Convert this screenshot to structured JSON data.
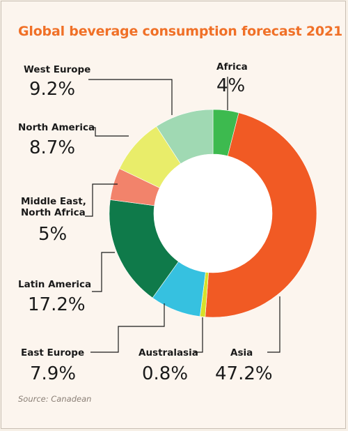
{
  "chart_data": {
    "type": "pie",
    "title": "Global beverage consumption forecast 2021",
    "donut": true,
    "slices": [
      {
        "name": "Africa",
        "value": 4,
        "value_label": "4%",
        "color": "#3dba4f"
      },
      {
        "name": "Asia",
        "value": 47.2,
        "value_label": "47.2%",
        "color": "#f15a24"
      },
      {
        "name": "Australasia",
        "value": 0.8,
        "value_label": "0.8%",
        "color": "#d7e12a"
      },
      {
        "name": "East Europe",
        "value": 7.9,
        "value_label": "7.9%",
        "color": "#36c1e0"
      },
      {
        "name": "Latin America",
        "value": 17.2,
        "value_label": "17.2%",
        "color": "#0f7a4a"
      },
      {
        "name": "Middle East,\nNorth Africa",
        "value": 5,
        "value_label": "5%",
        "color": "#f2836b"
      },
      {
        "name": "North America",
        "value": 8.7,
        "value_label": "8.7%",
        "color": "#e9ed6a"
      },
      {
        "name": "West Europe",
        "value": 9.2,
        "value_label": "9.2%",
        "color": "#a0d9b3"
      }
    ]
  },
  "source": "Source: Canadean"
}
